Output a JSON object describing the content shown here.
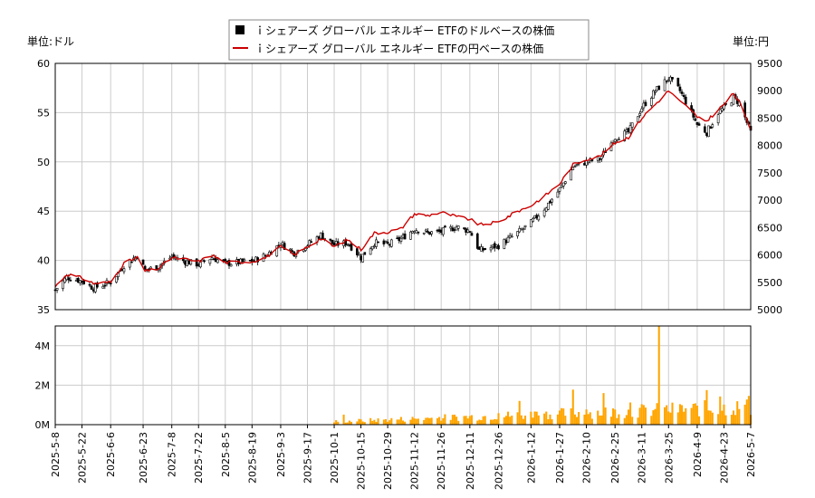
{
  "chart_data": {
    "type": "candlestick",
    "legend": {
      "placement": "top-center",
      "entries": [
        {
          "label": "ｉシェアーズ グローバル エネルギー ETFのドルベースの株価",
          "color": "#000000",
          "marker": "square"
        },
        {
          "label": "ｉシェアーズ グローバル エネルギー ETFの円ベースの株価",
          "color": "#cc0000",
          "marker": "line"
        }
      ]
    },
    "left_axis": {
      "unit_label": "単位:ドル",
      "range": [
        35,
        60
      ],
      "ticks": [
        35,
        40,
        45,
        50,
        55,
        60
      ]
    },
    "right_axis": {
      "unit_label": "単位:円",
      "range": [
        5000,
        9500
      ],
      "ticks": [
        5000,
        5500,
        6000,
        6500,
        7000,
        7500,
        8000,
        8500,
        9000,
        9500
      ]
    },
    "volume_axis": {
      "range": [
        0,
        5000000
      ],
      "ticks": [
        0,
        2000000,
        4000000
      ],
      "tick_labels": [
        "0M",
        "2M",
        "4M"
      ]
    },
    "x_axis": {
      "start": "2025-05-08",
      "end": "2026-05-07",
      "tick_labels": [
        "2025-5-8",
        "2025-5-22",
        "2025-6-6",
        "2025-6-23",
        "2025-7-8",
        "2025-7-22",
        "2025-8-5",
        "2025-8-19",
        "2025-9-3",
        "2025-9-17",
        "2025-10-1",
        "2025-10-15",
        "2025-10-29",
        "2025-11-12",
        "2025-11-26",
        "2025-12-11",
        "2025-12-26",
        "2026-1-12",
        "2026-1-27",
        "2026-2-10",
        "2026-2-25",
        "2026-3-11",
        "2026-3-25",
        "2026-4-9",
        "2026-4-23",
        "2026-5-7"
      ]
    },
    "grid": true,
    "usd_close_anchors": [
      [
        "2025-05-08",
        37.0
      ],
      [
        "2025-05-14",
        38.3
      ],
      [
        "2025-05-22",
        37.9
      ],
      [
        "2025-05-28",
        37.2
      ],
      [
        "2025-06-06",
        37.8
      ],
      [
        "2025-06-13",
        39.5
      ],
      [
        "2025-06-20",
        40.5
      ],
      [
        "2025-06-24",
        39.0
      ],
      [
        "2025-07-01",
        39.4
      ],
      [
        "2025-07-08",
        40.4
      ],
      [
        "2025-07-15",
        39.9
      ],
      [
        "2025-07-22",
        39.6
      ],
      [
        "2025-07-29",
        40.3
      ],
      [
        "2025-08-05",
        39.7
      ],
      [
        "2025-08-12",
        39.8
      ],
      [
        "2025-08-19",
        39.9
      ],
      [
        "2025-08-26",
        40.5
      ],
      [
        "2025-09-03",
        41.7
      ],
      [
        "2025-09-10",
        40.8
      ],
      [
        "2025-09-17",
        41.6
      ],
      [
        "2025-09-24",
        42.6
      ],
      [
        "2025-10-01",
        41.6
      ],
      [
        "2025-10-08",
        41.8
      ],
      [
        "2025-10-15",
        40.3
      ],
      [
        "2025-10-22",
        41.8
      ],
      [
        "2025-10-29",
        41.6
      ],
      [
        "2025-11-05",
        42.2
      ],
      [
        "2025-11-12",
        43.2
      ],
      [
        "2025-11-19",
        42.8
      ],
      [
        "2025-11-26",
        42.9
      ],
      [
        "2025-12-04",
        43.4
      ],
      [
        "2025-12-11",
        43.0
      ],
      [
        "2025-12-16",
        41.0
      ],
      [
        "2025-12-26",
        41.5
      ],
      [
        "2026-01-05",
        42.8
      ],
      [
        "2026-01-12",
        43.8
      ],
      [
        "2026-01-20",
        45.5
      ],
      [
        "2026-01-27",
        47.2
      ],
      [
        "2026-02-03",
        49.5
      ],
      [
        "2026-02-10",
        50.0
      ],
      [
        "2026-02-17",
        50.3
      ],
      [
        "2026-02-25",
        52.5
      ],
      [
        "2026-03-04",
        53.0
      ],
      [
        "2026-03-11",
        55.5
      ],
      [
        "2026-03-18",
        57.2
      ],
      [
        "2026-03-25",
        58.5
      ],
      [
        "2026-03-31",
        57.2
      ],
      [
        "2026-04-06",
        55.0
      ],
      [
        "2026-04-09",
        53.8
      ],
      [
        "2026-04-14",
        53.0
      ],
      [
        "2026-04-20",
        55.0
      ],
      [
        "2026-04-23",
        55.5
      ],
      [
        "2026-04-28",
        56.5
      ],
      [
        "2026-05-01",
        56.0
      ],
      [
        "2026-05-05",
        54.0
      ],
      [
        "2026-05-07",
        53.0
      ]
    ],
    "jpy_close_anchors": [
      [
        "2025-05-08",
        5420
      ],
      [
        "2025-05-14",
        5650
      ],
      [
        "2025-05-22",
        5580
      ],
      [
        "2025-05-28",
        5480
      ],
      [
        "2025-06-06",
        5500
      ],
      [
        "2025-06-13",
        5850
      ],
      [
        "2025-06-20",
        5950
      ],
      [
        "2025-06-24",
        5700
      ],
      [
        "2025-07-01",
        5750
      ],
      [
        "2025-07-08",
        5950
      ],
      [
        "2025-07-15",
        5920
      ],
      [
        "2025-07-22",
        5880
      ],
      [
        "2025-07-29",
        6000
      ],
      [
        "2025-08-05",
        5860
      ],
      [
        "2025-08-12",
        5870
      ],
      [
        "2025-08-19",
        5880
      ],
      [
        "2025-08-26",
        5950
      ],
      [
        "2025-09-03",
        6150
      ],
      [
        "2025-09-10",
        6000
      ],
      [
        "2025-09-17",
        6150
      ],
      [
        "2025-09-24",
        6300
      ],
      [
        "2025-10-01",
        6150
      ],
      [
        "2025-10-08",
        6280
      ],
      [
        "2025-10-15",
        6100
      ],
      [
        "2025-10-22",
        6400
      ],
      [
        "2025-10-29",
        6420
      ],
      [
        "2025-11-05",
        6480
      ],
      [
        "2025-11-12",
        6750
      ],
      [
        "2025-11-19",
        6720
      ],
      [
        "2025-11-26",
        6780
      ],
      [
        "2025-12-04",
        6700
      ],
      [
        "2025-12-11",
        6650
      ],
      [
        "2025-12-16",
        6550
      ],
      [
        "2025-12-26",
        6600
      ],
      [
        "2026-01-05",
        6800
      ],
      [
        "2026-01-12",
        6900
      ],
      [
        "2026-01-20",
        7100
      ],
      [
        "2026-01-27",
        7300
      ],
      [
        "2026-02-03",
        7650
      ],
      [
        "2026-02-10",
        7750
      ],
      [
        "2026-02-17",
        7800
      ],
      [
        "2026-02-25",
        8050
      ],
      [
        "2026-03-04",
        8150
      ],
      [
        "2026-03-11",
        8500
      ],
      [
        "2026-03-18",
        8750
      ],
      [
        "2026-03-25",
        9000
      ],
      [
        "2026-03-31",
        8800
      ],
      [
        "2026-04-06",
        8650
      ],
      [
        "2026-04-09",
        8500
      ],
      [
        "2026-04-14",
        8450
      ],
      [
        "2026-04-20",
        8650
      ],
      [
        "2026-04-23",
        8750
      ],
      [
        "2026-04-28",
        8950
      ],
      [
        "2026-05-01",
        8800
      ],
      [
        "2026-05-05",
        8450
      ],
      [
        "2026-05-07",
        8300
      ]
    ],
    "volume_start": "2025-10-01",
    "volume_peak": {
      "date": "2026-03-20",
      "value": 5100000
    },
    "colors": {
      "jpy_line": "#cc0000",
      "volume_bar": "#ffa500",
      "candle_up": "#ffffff",
      "candle_down": "#000000",
      "grid": "#cccccc"
    }
  }
}
